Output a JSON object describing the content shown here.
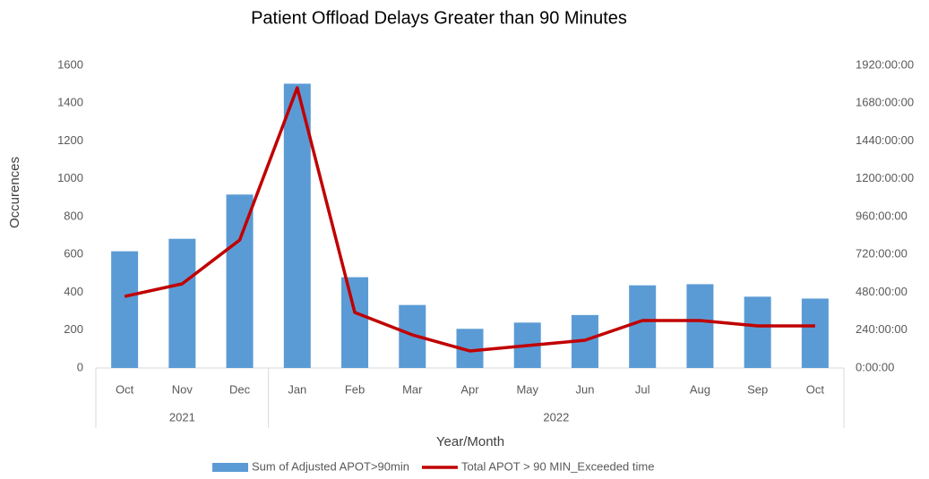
{
  "chart_data": {
    "type": "bar_line",
    "title": "Patient Offload Delays Greater than 90 Minutes",
    "y_label": "Occurences",
    "x_label": "Year/Month",
    "categories": [
      "Oct",
      "Nov",
      "Dec",
      "Jan",
      "Feb",
      "Mar",
      "Apr",
      "May",
      "Jun",
      "Jul",
      "Aug",
      "Sep",
      "Oct"
    ],
    "x_groups": [
      {
        "label": "2021",
        "count": 3
      },
      {
        "label": "2022",
        "count": 10
      }
    ],
    "series": [
      {
        "name": "Sum of Adjusted APOT>90min",
        "type": "bar",
        "color": "#5b9bd5",
        "values": [
          617,
          683,
          917,
          1503,
          480,
          333,
          207,
          240,
          280,
          437,
          443,
          377,
          367
        ]
      },
      {
        "name": "Total APOT > 90 MIN_Exceeded time",
        "type": "line",
        "axis": "y2",
        "color": "#c00000",
        "values": [
          454,
          534,
          812,
          1778,
          352,
          210,
          108,
          142,
          176,
          301,
          301,
          267,
          267
        ]
      }
    ],
    "ylim": [
      0,
      1600
    ],
    "yticks": [
      0,
      200,
      400,
      600,
      800,
      1000,
      1200,
      1400,
      1600
    ],
    "y2lim": [
      0,
      1920
    ],
    "y2ticks": [
      {
        "value": 0,
        "label": "0:00:00"
      },
      {
        "value": 240,
        "label": "240:00:00"
      },
      {
        "value": 480,
        "label": "480:00:00"
      },
      {
        "value": 720,
        "label": "720:00:00"
      },
      {
        "value": 960,
        "label": "960:00:00"
      },
      {
        "value": 1200,
        "label": "1200:00:00"
      },
      {
        "value": 1440,
        "label": "1440:00:00"
      },
      {
        "value": 1680,
        "label": "1680:00:00"
      },
      {
        "value": 1920,
        "label": "1920:00:00"
      }
    ],
    "grid": false,
    "legend": "bottom"
  }
}
